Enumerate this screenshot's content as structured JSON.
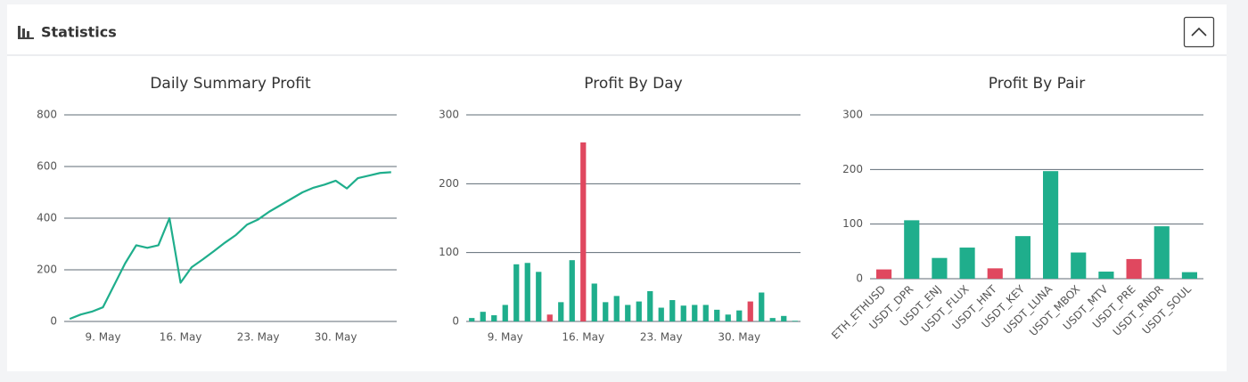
{
  "panel": {
    "title": "Statistics"
  },
  "chart_data": [
    {
      "type": "line",
      "title": "Daily Summary Profit",
      "categories": [
        null,
        null,
        null,
        "9. May",
        null,
        null,
        null,
        null,
        null,
        null,
        "16. May",
        null,
        null,
        null,
        null,
        null,
        null,
        "23. May",
        null,
        null,
        null,
        null,
        null,
        null,
        "30. May",
        null,
        null,
        null,
        null,
        null
      ],
      "values": [
        10,
        27,
        38,
        55,
        140,
        225,
        295,
        285,
        295,
        400,
        150,
        210,
        240,
        272,
        305,
        335,
        375,
        395,
        425,
        450,
        475,
        500,
        518,
        530,
        545,
        515,
        555,
        565,
        575,
        578
      ],
      "color": "#1fae8c",
      "ylim": [
        0,
        800
      ],
      "yticks": [
        0,
        200,
        400,
        600,
        800
      ],
      "grid": true
    },
    {
      "type": "bar",
      "title": "Profit By Day",
      "categories": [
        null,
        null,
        null,
        "9. May",
        null,
        null,
        null,
        null,
        null,
        null,
        "16. May",
        null,
        null,
        null,
        null,
        null,
        null,
        "23. May",
        null,
        null,
        null,
        null,
        null,
        null,
        "30. May",
        null,
        null,
        null,
        null,
        null
      ],
      "values": [
        5,
        14,
        9,
        24,
        83,
        85,
        72,
        10,
        28,
        89,
        260,
        55,
        28,
        37,
        24,
        29,
        44,
        20,
        31,
        23,
        24,
        24,
        17,
        10,
        16,
        29,
        42,
        5,
        8,
        1
      ],
      "colors": [
        "#1fae8c",
        "#1fae8c",
        "#1fae8c",
        "#1fae8c",
        "#1fae8c",
        "#1fae8c",
        "#1fae8c",
        "#e0485f",
        "#1fae8c",
        "#1fae8c",
        "#e0485f",
        "#1fae8c",
        "#1fae8c",
        "#1fae8c",
        "#1fae8c",
        "#1fae8c",
        "#1fae8c",
        "#1fae8c",
        "#1fae8c",
        "#1fae8c",
        "#1fae8c",
        "#1fae8c",
        "#1fae8c",
        "#1fae8c",
        "#1fae8c",
        "#e0485f",
        "#1fae8c",
        "#1fae8c",
        "#1fae8c",
        "#1fae8c"
      ],
      "ylim": [
        0,
        300
      ],
      "yticks": [
        0,
        100,
        200,
        300
      ],
      "grid": true
    },
    {
      "type": "bar",
      "title": "Profit By Pair",
      "categories": [
        "ETH_ETHUSD",
        "USDT_DPR",
        "USDT_ENJ",
        "USDT_FLUX",
        "USDT_HNT",
        "USDT_KEY",
        "USDT_LUNA",
        "USDT_MBOX",
        "USDT_MTV",
        "USDT_PRE",
        "USDT_RNDR",
        "USDT_SOUL"
      ],
      "values": [
        17,
        107,
        38,
        57,
        19,
        78,
        197,
        48,
        13,
        36,
        96,
        12
      ],
      "colors": [
        "#e0485f",
        "#1fae8c",
        "#1fae8c",
        "#1fae8c",
        "#e0485f",
        "#1fae8c",
        "#1fae8c",
        "#1fae8c",
        "#1fae8c",
        "#e0485f",
        "#1fae8c",
        "#1fae8c"
      ],
      "ylim": [
        0,
        300
      ],
      "yticks": [
        0,
        100,
        200,
        300
      ],
      "grid": true,
      "rotate_labels": true
    }
  ]
}
